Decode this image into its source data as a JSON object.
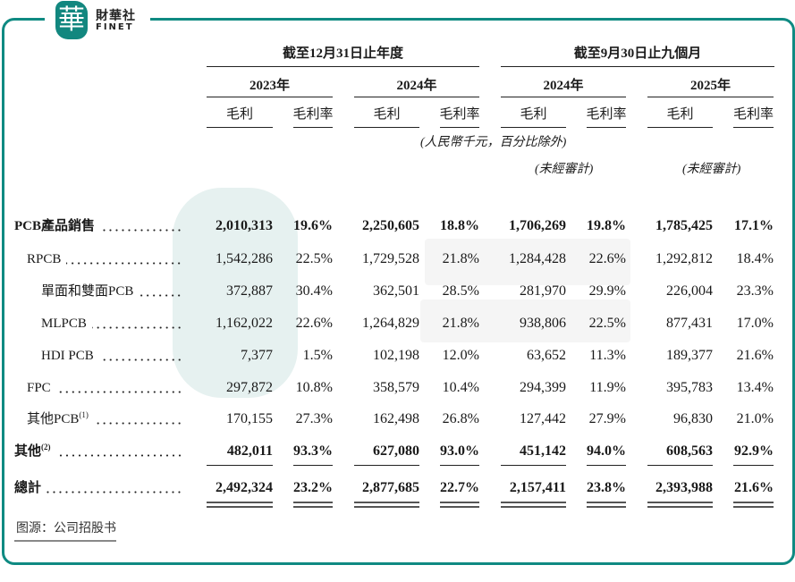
{
  "brand": {
    "logo_char": "華",
    "name_cn": "財華社",
    "name_en": "FINET",
    "color": "#0f8a82"
  },
  "header": {
    "group1": "截至12月31日止年度",
    "group2": "截至9月30日止九個月",
    "years": [
      "2023年",
      "2024年",
      "2024年",
      "2025年"
    ],
    "sub": [
      "毛利",
      "毛利率",
      "毛利",
      "毛利率",
      "毛利",
      "毛利率",
      "毛利",
      "毛利率"
    ],
    "unit_note": "(人民幣千元，百分比除外)",
    "unaudited": [
      "(未經審計)",
      "(未經審計)"
    ]
  },
  "rows": [
    {
      "label": "PCB產品銷售",
      "note": "",
      "bold": true,
      "indent": 0,
      "values": [
        "2,010,313",
        "19.6%",
        "2,250,605",
        "18.8%",
        "1,706,269",
        "19.8%",
        "1,785,425",
        "17.1%"
      ]
    },
    {
      "label": "RPCB",
      "note": "",
      "bold": false,
      "indent": 1,
      "values": [
        "1,542,286",
        "22.5%",
        "1,729,528",
        "21.8%",
        "1,284,428",
        "22.6%",
        "1,292,812",
        "18.4%"
      ]
    },
    {
      "label": "單面和雙面PCB",
      "note": "",
      "bold": false,
      "indent": 2,
      "values": [
        "372,887",
        "30.4%",
        "362,501",
        "28.5%",
        "281,970",
        "29.9%",
        "226,004",
        "23.3%"
      ]
    },
    {
      "label": "MLPCB",
      "note": "",
      "bold": false,
      "indent": 2,
      "values": [
        "1,162,022",
        "22.6%",
        "1,264,829",
        "21.8%",
        "938,806",
        "22.5%",
        "877,431",
        "17.0%"
      ]
    },
    {
      "label": "HDI PCB",
      "note": "",
      "bold": false,
      "indent": 2,
      "values": [
        "7,377",
        "1.5%",
        "102,198",
        "12.0%",
        "63,652",
        "11.3%",
        "189,377",
        "21.6%"
      ]
    },
    {
      "label": "FPC",
      "note": "",
      "bold": false,
      "indent": 1,
      "values": [
        "297,872",
        "10.8%",
        "358,579",
        "10.4%",
        "294,399",
        "11.9%",
        "395,783",
        "13.4%"
      ]
    },
    {
      "label": "其他PCB",
      "note": "(1)",
      "bold": false,
      "indent": 1,
      "values": [
        "170,155",
        "27.3%",
        "162,498",
        "26.8%",
        "127,442",
        "27.9%",
        "96,830",
        "21.0%"
      ]
    },
    {
      "label": "其他",
      "note": "(2)",
      "bold": true,
      "indent": 0,
      "values": [
        "482,011",
        "93.3%",
        "627,080",
        "93.0%",
        "451,142",
        "94.0%",
        "608,563",
        "92.9%"
      ]
    },
    {
      "label": "總計",
      "note": "",
      "bold": true,
      "indent": 0,
      "values": [
        "2,492,324",
        "23.2%",
        "2,877,685",
        "22.7%",
        "2,157,411",
        "23.8%",
        "2,393,988",
        "21.6%"
      ]
    }
  ],
  "source": "图源：公司招股书"
}
